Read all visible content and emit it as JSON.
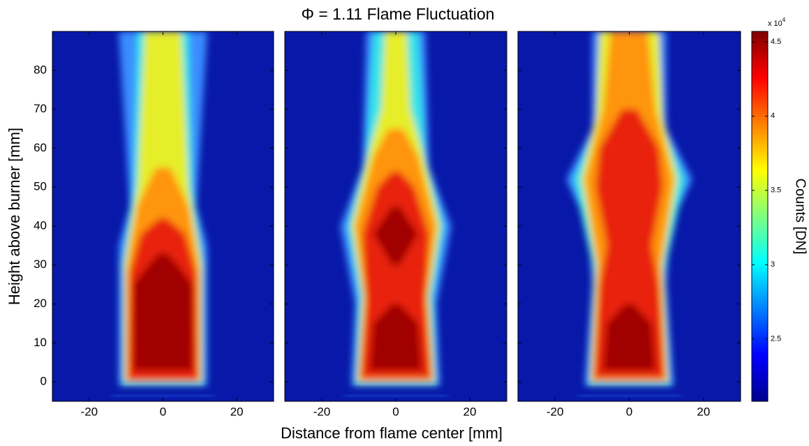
{
  "chart_data": {
    "type": "heatmap",
    "title": "Φ = 1.11 Flame Fluctuation",
    "x_label": "Distance from flame center [mm]",
    "y_label": "Height above burner [mm]",
    "xlim": [
      -30,
      30
    ],
    "xticks": [
      -20,
      0,
      20
    ],
    "ylim": [
      -5,
      90
    ],
    "yticks": [
      0,
      10,
      20,
      30,
      40,
      50,
      60,
      70,
      80
    ],
    "colorbar": {
      "label": "Counts [DN]",
      "scale_base": "x 10",
      "scale_exponent": "4",
      "clim": [
        2.08,
        4.57
      ],
      "ticks": [
        2.5,
        3,
        3.5,
        4,
        4.5
      ],
      "colormap": "jet"
    }
  }
}
